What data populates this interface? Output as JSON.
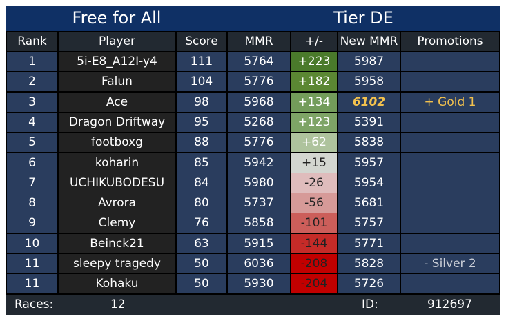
{
  "title": {
    "mode": "Free for All",
    "tier": "Tier DE"
  },
  "headers": {
    "rank": "Rank",
    "player": "Player",
    "score": "Score",
    "mmr": "MMR",
    "delta": "+/-",
    "new_mmr": "New MMR",
    "promotions": "Promotions"
  },
  "rows": [
    {
      "rank": "1",
      "player": "5i-E8_A12I-y4",
      "score": "111",
      "mmr": "5764",
      "delta": "+223",
      "delta_color": "#4a7a2b",
      "delta_text_color": "#ffffff",
      "new_mmr": "5987",
      "promotion": ""
    },
    {
      "rank": "2",
      "player": "Falun",
      "score": "104",
      "mmr": "5776",
      "delta": "+182",
      "delta_color": "#5b8733",
      "delta_text_color": "#ffffff",
      "new_mmr": "5958",
      "promotion": ""
    },
    {
      "rank": "3",
      "player": "Ace",
      "score": "98",
      "mmr": "5968",
      "delta": "+134",
      "delta_color": "#739c5a",
      "delta_text_color": "#ffffff",
      "new_mmr": "6102",
      "new_mmr_highlight": true,
      "promotion": "+ Gold 1",
      "promotion_color": "#f2c14e"
    },
    {
      "rank": "4",
      "player": "Dragon Driftway",
      "score": "95",
      "mmr": "5268",
      "delta": "+123",
      "delta_color": "#7ea466",
      "delta_text_color": "#ffffff",
      "new_mmr": "5391",
      "promotion": ""
    },
    {
      "rank": "5",
      "player": "footboxg",
      "score": "88",
      "mmr": "5776",
      "delta": "+62",
      "delta_color": "#aec39d",
      "delta_text_color": "#ffffff",
      "new_mmr": "5838",
      "promotion": ""
    },
    {
      "rank": "6",
      "player": "koharin",
      "score": "85",
      "mmr": "5942",
      "delta": "+15",
      "delta_color": "#d3d6d0",
      "delta_text_color": "#222222",
      "new_mmr": "5957",
      "promotion": ""
    },
    {
      "rank": "7",
      "player": "UCHIKUBODESU",
      "score": "84",
      "mmr": "5980",
      "delta": "-26",
      "delta_color": "#dfbcbc",
      "delta_text_color": "#222222",
      "new_mmr": "5954",
      "promotion": ""
    },
    {
      "rank": "8",
      "player": "Avrora",
      "score": "80",
      "mmr": "5737",
      "delta": "-56",
      "delta_color": "#d69a98",
      "delta_text_color": "#222222",
      "new_mmr": "5681",
      "promotion": ""
    },
    {
      "rank": "9",
      "player": "Clemy",
      "score": "76",
      "mmr": "5858",
      "delta": "-101",
      "delta_color": "#cc5e5a",
      "delta_text_color": "#222222",
      "new_mmr": "5757",
      "promotion": ""
    },
    {
      "rank": "10",
      "player": "Beinck21",
      "score": "63",
      "mmr": "5915",
      "delta": "-144",
      "delta_color": "#c52b28",
      "delta_text_color": "#222222",
      "new_mmr": "5771",
      "promotion": ""
    },
    {
      "rank": "11",
      "player": "sleepy tragedy",
      "score": "50",
      "mmr": "6036",
      "delta": "-208",
      "delta_color": "#c10000",
      "delta_text_color": "#222222",
      "new_mmr": "5828",
      "promotion": "- Silver 2",
      "promotion_color": "#c9cdd6"
    },
    {
      "rank": "11",
      "player": "Kohaku",
      "score": "50",
      "mmr": "5930",
      "delta": "-204",
      "delta_color": "#c10000",
      "delta_text_color": "#222222",
      "new_mmr": "5726",
      "promotion": ""
    }
  ],
  "footer": {
    "races_label": "Races:",
    "races_value": "12",
    "id_label": "ID:",
    "id_value": "912697"
  },
  "colors": {
    "title_bg": "#0f3065",
    "header_bg": "#222931",
    "stat_cell_bg": "#2a3d5e",
    "player_cell_bg": "#222222",
    "gold": "#f2c14e"
  }
}
